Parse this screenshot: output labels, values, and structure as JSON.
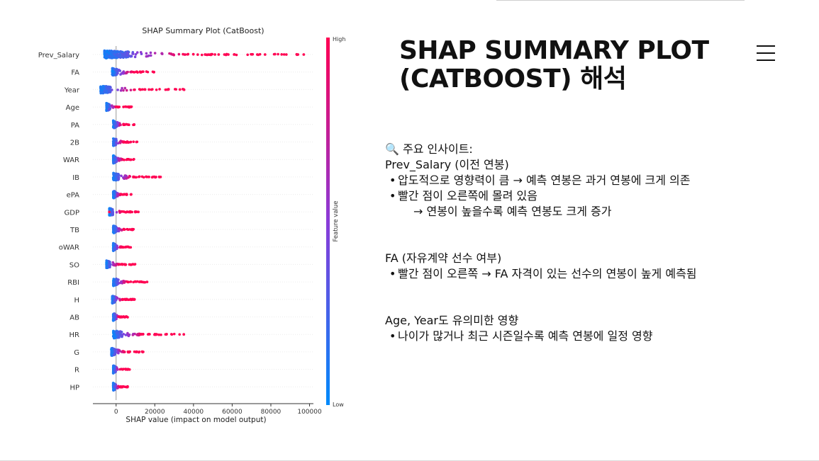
{
  "slide": {
    "title_line1": "SHAP SUMMARY PLOT",
    "title_line2": "(CATBOOST) 해석"
  },
  "menu": {
    "icon": "hamburger-icon"
  },
  "insights": {
    "heading_icon": "🔍",
    "heading": "주요 인사이트:",
    "sections": [
      {
        "title": "Prev_Salary (이전 연봉)",
        "bullets": [
          {
            "text": "압도적으로 영향력이 큼 → 예측 연봉은 과거 연봉에 크게 의존"
          },
          {
            "text": "빨간 점이 오른쪽에 몰려 있음",
            "cont": "→ 연봉이 높을수록 예측 연봉도 크게 증가"
          }
        ]
      },
      {
        "title": "FA (자유계약 선수 여부)",
        "bullets": [
          {
            "text": "빨간 점이 오른쪽 → FA 자격이 있는 선수의 연봉이 높게 예측됨"
          }
        ]
      },
      {
        "title": "Age, Year도 유의미한 영향",
        "bullets": [
          {
            "text": "나이가 많거나 최근 시즌일수록 예측 연봉에 일정 영향"
          }
        ]
      }
    ]
  },
  "chart_data": {
    "type": "scatter",
    "title": "SHAP Summary Plot (CatBoost)",
    "xlabel": "SHAP value (impact on model output)",
    "colorbar_label": "Feature value",
    "colorbar_high": "High",
    "colorbar_low": "Low",
    "xlim": [
      -12000,
      102000
    ],
    "xticks": [
      0,
      20000,
      40000,
      60000,
      80000,
      100000
    ],
    "grid": false,
    "colors": {
      "low": "#1e88e5",
      "high": "#ff0d57"
    },
    "features": [
      {
        "name": "Prev_Salary",
        "min": -6000,
        "max": 97000,
        "outliers": [
          46000,
          53000,
          56000,
          58000,
          61000,
          73000,
          77000,
          88000,
          94000,
          97000
        ]
      },
      {
        "name": "FA",
        "min": -2000,
        "max": 23000,
        "outliers": []
      },
      {
        "name": "Year",
        "min": -8000,
        "max": 36000,
        "outliers": [
          15000,
          17000,
          27000,
          33000,
          35000
        ]
      },
      {
        "name": "Age",
        "min": -5000,
        "max": 8000,
        "outliers": []
      },
      {
        "name": "PA",
        "min": -1500,
        "max": 10000,
        "outliers": []
      },
      {
        "name": "2B",
        "min": -1500,
        "max": 11000,
        "outliers": [
          10500
        ]
      },
      {
        "name": "WAR",
        "min": -1500,
        "max": 10000,
        "outliers": []
      },
      {
        "name": "IB",
        "min": -1500,
        "max": 23000,
        "outliers": [
          17000,
          19000,
          23000
        ]
      },
      {
        "name": "ePA",
        "min": -1500,
        "max": 8000,
        "outliers": []
      },
      {
        "name": "GDP",
        "min": -3500,
        "max": 12000,
        "outliers": [
          -3500,
          11500
        ]
      },
      {
        "name": "TB",
        "min": -1500,
        "max": 11000,
        "outliers": []
      },
      {
        "name": "oWAR",
        "min": -1500,
        "max": 8000,
        "outliers": []
      },
      {
        "name": "SO",
        "min": -5000,
        "max": 10000,
        "outliers": [
          9500
        ]
      },
      {
        "name": "RBI",
        "min": -1500,
        "max": 16000,
        "outliers": [
          12000,
          16000
        ]
      },
      {
        "name": "H",
        "min": -2000,
        "max": 10000,
        "outliers": [
          9500
        ]
      },
      {
        "name": "AB",
        "min": -1500,
        "max": 6000,
        "outliers": []
      },
      {
        "name": "HR",
        "min": -1500,
        "max": 35000,
        "outliers": [
          13000,
          21000,
          26000,
          35000
        ]
      },
      {
        "name": "G",
        "min": -2500,
        "max": 14000,
        "outliers": [
          12000,
          14000
        ]
      },
      {
        "name": "R",
        "min": -1500,
        "max": 7000,
        "outliers": []
      },
      {
        "name": "HP",
        "min": -1500,
        "max": 6000,
        "outliers": []
      }
    ]
  }
}
